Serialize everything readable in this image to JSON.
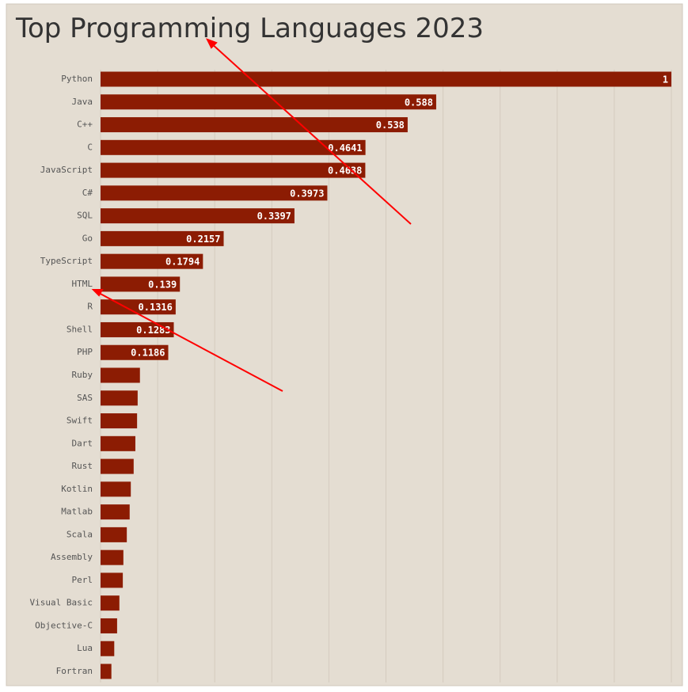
{
  "chart_data": {
    "type": "barh",
    "title": "Top Programming Languages 2023",
    "categories": [
      "Python",
      "Java",
      "C++",
      "C",
      "JavaScript",
      "C#",
      "SQL",
      "Go",
      "TypeScript",
      "HTML",
      "R",
      "Shell",
      "PHP",
      "Ruby",
      "SAS",
      "Swift",
      "Dart",
      "Rust",
      "Kotlin",
      "Matlab",
      "Scala",
      "Assembly",
      "Perl",
      "Visual Basic",
      "Objective-C",
      "Lua",
      "Fortran"
    ],
    "values": [
      1,
      0.588,
      0.538,
      0.4641,
      0.4638,
      0.3973,
      0.3397,
      0.2157,
      0.1794,
      0.139,
      0.1316,
      0.1283,
      0.1186,
      0.069,
      0.065,
      0.064,
      0.061,
      0.058,
      0.053,
      0.051,
      0.046,
      0.04,
      0.039,
      0.033,
      0.029,
      0.024,
      0.019
    ],
    "value_labels": [
      "1",
      "0.588",
      "0.538",
      "0.4641",
      "0.4638",
      "0.3973",
      "0.3397",
      "0.2157",
      "0.1794",
      "0.139",
      "0.1316",
      "0.1283",
      "0.1186",
      null,
      null,
      null,
      null,
      null,
      null,
      null,
      null,
      null,
      null,
      null,
      null,
      null,
      null
    ],
    "color": "#8c1c03",
    "xlim": [
      0,
      1
    ],
    "xticks": [
      0,
      0.1,
      0.2,
      0.3,
      0.4,
      0.5,
      0.6,
      0.7,
      0.8,
      0.9,
      1
    ],
    "grid": true
  }
}
